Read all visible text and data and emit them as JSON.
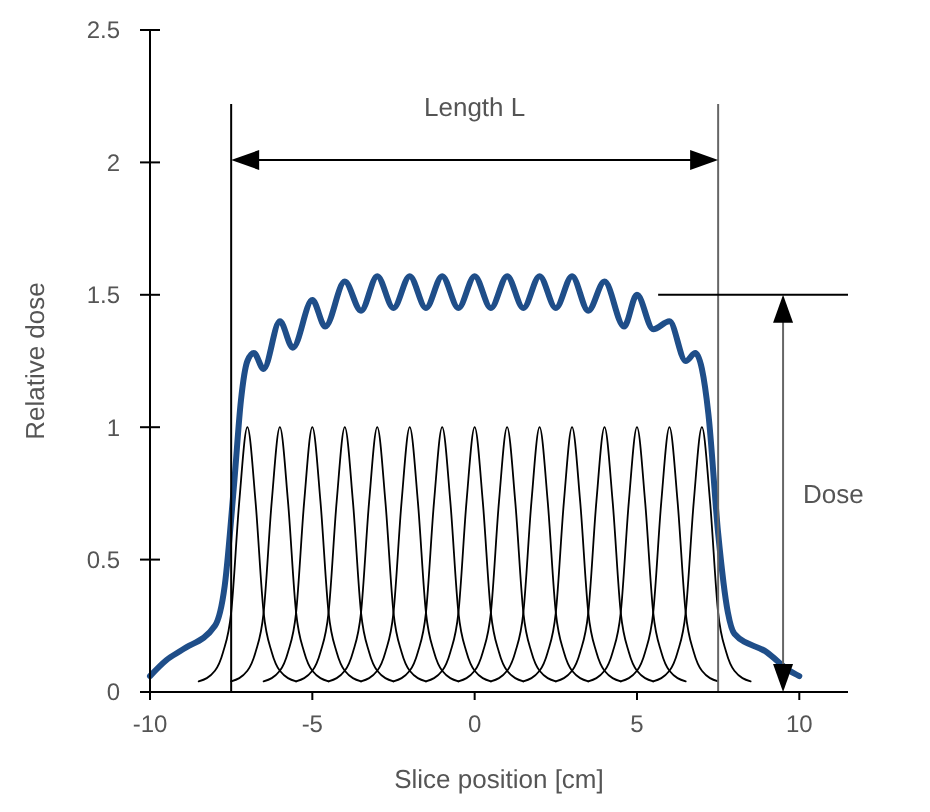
{
  "chart_data": {
    "type": "line",
    "xlabel": "Slice position [cm]",
    "ylabel": "Relative dose",
    "xlim": [
      -10,
      11.5
    ],
    "ylim": [
      0,
      2.5
    ],
    "xticks": [
      -10,
      -5,
      0,
      5,
      10
    ],
    "yticks": [
      0,
      0.5,
      1,
      1.5,
      2,
      2.5
    ],
    "grid": false,
    "marker": "none",
    "line_style": "solid",
    "ref_lines": [
      {
        "axis": "x",
        "value": -7.5,
        "color": "#000000"
      },
      {
        "axis": "x",
        "value": 7.5,
        "color": "#666666"
      },
      {
        "axis": "y",
        "value": 1.5,
        "color": "#000000"
      }
    ],
    "annotations": [
      "Length L",
      "Dose"
    ],
    "series": [
      {
        "color": "#000000",
        "x": [
          -8.5,
          -8,
          -7.75,
          -7.5,
          -7.25,
          -7,
          -6.75,
          -6.5,
          -6.25,
          -6,
          -5.5
        ],
        "values": [
          0.04,
          0.08,
          0.15,
          0.3,
          0.72,
          1,
          0.72,
          0.3,
          0.15,
          0.08,
          0.04
        ]
      },
      {
        "color": "#000000",
        "x": [
          -7.5,
          -7,
          -6.75,
          -6.5,
          -6.25,
          -6,
          -5.75,
          -5.5,
          -5.25,
          -5,
          -4.5
        ],
        "values": [
          0.04,
          0.08,
          0.15,
          0.3,
          0.72,
          1,
          0.72,
          0.3,
          0.15,
          0.08,
          0.04
        ]
      },
      {
        "color": "#000000",
        "x": [
          -6.5,
          -6,
          -5.75,
          -5.5,
          -5.25,
          -5,
          -4.75,
          -4.5,
          -4.25,
          -4,
          -3.5
        ],
        "values": [
          0.04,
          0.08,
          0.15,
          0.3,
          0.72,
          1,
          0.72,
          0.3,
          0.15,
          0.08,
          0.04
        ]
      },
      {
        "color": "#000000",
        "x": [
          -5.5,
          -5,
          -4.75,
          -4.5,
          -4.25,
          -4,
          -3.75,
          -3.5,
          -3.25,
          -3,
          -2.5
        ],
        "values": [
          0.04,
          0.08,
          0.15,
          0.3,
          0.72,
          1,
          0.72,
          0.3,
          0.15,
          0.08,
          0.04
        ]
      },
      {
        "color": "#000000",
        "x": [
          -4.5,
          -4,
          -3.75,
          -3.5,
          -3.25,
          -3,
          -2.75,
          -2.5,
          -2.25,
          -2,
          -1.5
        ],
        "values": [
          0.04,
          0.08,
          0.15,
          0.3,
          0.72,
          1,
          0.72,
          0.3,
          0.15,
          0.08,
          0.04
        ]
      },
      {
        "color": "#000000",
        "x": [
          -3.5,
          -3,
          -2.75,
          -2.5,
          -2.25,
          -2,
          -1.75,
          -1.5,
          -1.25,
          -1,
          -0.5
        ],
        "values": [
          0.04,
          0.08,
          0.15,
          0.3,
          0.72,
          1,
          0.72,
          0.3,
          0.15,
          0.08,
          0.04
        ]
      },
      {
        "color": "#000000",
        "x": [
          -2.5,
          -2,
          -1.75,
          -1.5,
          -1.25,
          -1,
          -0.75,
          -0.5,
          -0.25,
          0,
          0.5
        ],
        "values": [
          0.04,
          0.08,
          0.15,
          0.3,
          0.72,
          1,
          0.72,
          0.3,
          0.15,
          0.08,
          0.04
        ]
      },
      {
        "color": "#000000",
        "x": [
          -1.5,
          -1,
          -0.75,
          -0.5,
          -0.25,
          0,
          0.25,
          0.5,
          0.75,
          1,
          1.5
        ],
        "values": [
          0.04,
          0.08,
          0.15,
          0.3,
          0.72,
          1,
          0.72,
          0.3,
          0.15,
          0.08,
          0.04
        ]
      },
      {
        "color": "#000000",
        "x": [
          -0.5,
          0,
          0.25,
          0.5,
          0.75,
          1,
          1.25,
          1.5,
          1.75,
          2,
          2.5
        ],
        "values": [
          0.04,
          0.08,
          0.15,
          0.3,
          0.72,
          1,
          0.72,
          0.3,
          0.15,
          0.08,
          0.04
        ]
      },
      {
        "color": "#000000",
        "x": [
          0.5,
          1,
          1.25,
          1.5,
          1.75,
          2,
          2.25,
          2.5,
          2.75,
          3,
          3.5
        ],
        "values": [
          0.04,
          0.08,
          0.15,
          0.3,
          0.72,
          1,
          0.72,
          0.3,
          0.15,
          0.08,
          0.04
        ]
      },
      {
        "color": "#000000",
        "x": [
          1.5,
          2,
          2.25,
          2.5,
          2.75,
          3,
          3.25,
          3.5,
          3.75,
          4,
          4.5
        ],
        "values": [
          0.04,
          0.08,
          0.15,
          0.3,
          0.72,
          1,
          0.72,
          0.3,
          0.15,
          0.08,
          0.04
        ]
      },
      {
        "color": "#000000",
        "x": [
          2.5,
          3,
          3.25,
          3.5,
          3.75,
          4,
          4.25,
          4.5,
          4.75,
          5,
          5.5
        ],
        "values": [
          0.04,
          0.08,
          0.15,
          0.3,
          0.72,
          1,
          0.72,
          0.3,
          0.15,
          0.08,
          0.04
        ]
      },
      {
        "color": "#000000",
        "x": [
          3.5,
          4,
          4.25,
          4.5,
          4.75,
          5,
          5.25,
          5.5,
          5.75,
          6,
          6.5
        ],
        "values": [
          0.04,
          0.08,
          0.15,
          0.3,
          0.72,
          1,
          0.72,
          0.3,
          0.15,
          0.08,
          0.04
        ]
      },
      {
        "color": "#000000",
        "x": [
          4.5,
          5,
          5.25,
          5.5,
          5.75,
          6,
          6.25,
          6.5,
          6.75,
          7,
          7.5
        ],
        "values": [
          0.04,
          0.08,
          0.15,
          0.3,
          0.72,
          1,
          0.72,
          0.3,
          0.15,
          0.08,
          0.04
        ]
      },
      {
        "color": "#000000",
        "x": [
          5.5,
          6,
          6.25,
          6.5,
          6.75,
          7,
          7.25,
          7.5,
          7.75,
          8,
          8.5
        ],
        "values": [
          0.04,
          0.08,
          0.15,
          0.3,
          0.72,
          1,
          0.72,
          0.3,
          0.15,
          0.08,
          0.04
        ]
      },
      {
        "color": "#1f4e89",
        "x": [
          -10,
          -9.5,
          -9,
          -8,
          -7.7,
          -7.4,
          -7.2,
          -7,
          -6.8,
          -6.5,
          -6,
          -5.6,
          -5,
          -4.6,
          -4,
          -3.5,
          -3,
          -2.5,
          -2,
          -1.5,
          -1,
          -0.5,
          0,
          0.5,
          1,
          1.5,
          2,
          2.5,
          3,
          3.5,
          4,
          4.6,
          5,
          5.5,
          6,
          6.5,
          6.8,
          7,
          7.2,
          7.5,
          7.8,
          8,
          9,
          9.7,
          10
        ],
        "values": [
          0.06,
          0.12,
          0.16,
          0.25,
          0.4,
          0.8,
          1.1,
          1.25,
          1.28,
          1.22,
          1.4,
          1.3,
          1.48,
          1.38,
          1.55,
          1.44,
          1.57,
          1.45,
          1.57,
          1.45,
          1.57,
          1.45,
          1.57,
          1.45,
          1.57,
          1.45,
          1.57,
          1.45,
          1.57,
          1.44,
          1.55,
          1.38,
          1.5,
          1.37,
          1.4,
          1.25,
          1.28,
          1.22,
          1.05,
          0.6,
          0.3,
          0.22,
          0.15,
          0.08,
          0.06
        ]
      }
    ]
  }
}
